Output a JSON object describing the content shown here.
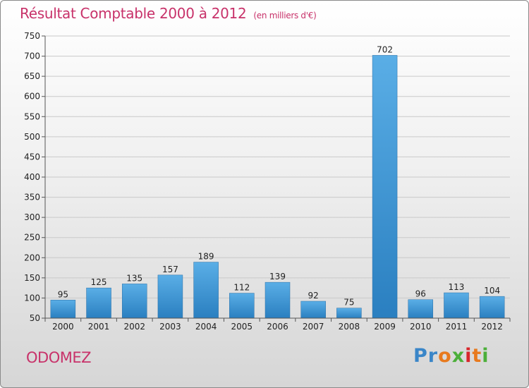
{
  "chart_data": {
    "type": "bar",
    "title": "Résultat Comptable 2000 à 2012",
    "subtitle": "(en milliers d'€)",
    "categories": [
      "2000",
      "2001",
      "2002",
      "2003",
      "2004",
      "2005",
      "2006",
      "2007",
      "2008",
      "2009",
      "2010",
      "2011",
      "2012"
    ],
    "values": [
      95,
      125,
      135,
      157,
      189,
      112,
      139,
      92,
      75,
      702,
      96,
      113,
      104
    ],
    "yticks": [
      50,
      100,
      150,
      200,
      250,
      300,
      350,
      400,
      450,
      500,
      550,
      600,
      650,
      700,
      750
    ],
    "ylim": [
      50,
      750
    ],
    "grid": true,
    "xlabel": "",
    "ylabel": ""
  },
  "location": "ODOMEZ",
  "brand": {
    "letters": [
      "P",
      "r",
      "o",
      "x",
      "i",
      "t",
      "i"
    ]
  },
  "colors": {
    "bar_top": "#5aaee6",
    "bar_bottom": "#2a7fc0",
    "accent": "#c8326a"
  }
}
